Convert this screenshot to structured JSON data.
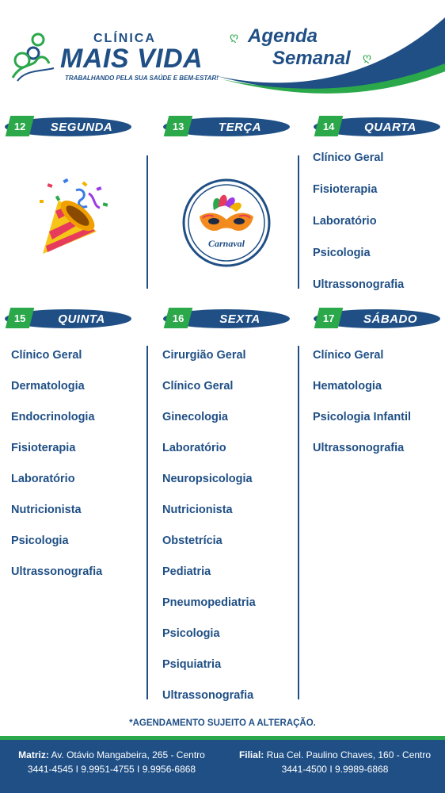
{
  "brand": {
    "top": "CLÍNICA",
    "main": "MAIS VIDA",
    "tagline": "TRABALHANDO PELA SUA SAÚDE E BEM-ESTAR!"
  },
  "title": {
    "line1": "Agenda",
    "line2": "Semanal"
  },
  "colors": {
    "primary": "#1f4f85",
    "accent": "#2aa84a"
  },
  "days": [
    {
      "num": "12",
      "name": "SEGUNDA",
      "items": []
    },
    {
      "num": "13",
      "name": "TERÇA",
      "items": [],
      "badge": "Carnaval"
    },
    {
      "num": "14",
      "name": "QUARTA",
      "items": [
        "Clínico Geral",
        "Fisioterapia",
        "Laboratório",
        "Psicologia",
        "Ultrassonografia"
      ]
    },
    {
      "num": "15",
      "name": "QUINTA",
      "items": [
        "Clínico Geral",
        "Dermatologia",
        "Endocrinologia",
        "Fisioterapia",
        "Laboratório",
        "Nutricionista",
        "Psicologia",
        "Ultrassonografia"
      ]
    },
    {
      "num": "16",
      "name": "SEXTA",
      "items": [
        "Cirurgião Geral",
        "Clínico Geral",
        "Ginecologia",
        "Laboratório",
        "Neuropsicologia",
        "Nutricionista",
        "Obstetrícia",
        "Pediatria",
        "Pneumopediatria",
        "Psicologia",
        "Psiquiatria",
        "Ultrassonografia"
      ]
    },
    {
      "num": "17",
      "name": "SÁBADO",
      "items": [
        "Clínico Geral",
        "Hematologia",
        "Psicologia Infantil",
        "Ultrassonografia"
      ]
    }
  ],
  "note": "*AGENDAMENTO SUJEITO A ALTERAÇÃO.",
  "footer": {
    "matriz_label": "Matriz:",
    "matriz_address": " Av. Otávio Mangabeira, 265 - Centro",
    "matriz_phones": "3441-4545 I 9.9951-4755 I 9.9956-6868",
    "filial_label": "Filial:",
    "filial_address": " Rua Cel. Paulino Chaves, 160 - Centro",
    "filial_phones": "3441-4500 I 9.9989-6868"
  }
}
